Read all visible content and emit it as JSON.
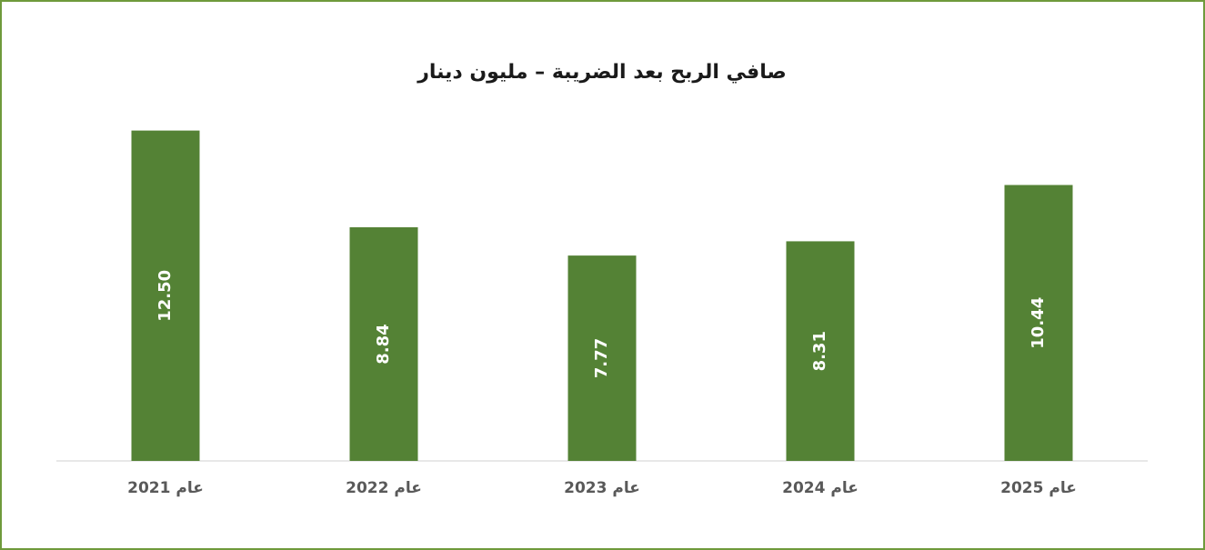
{
  "chart_data": {
    "type": "bar",
    "title": "صافي الربح بعد الضريبة – مليون دينار",
    "categories": [
      "عام 2021",
      "عام 2022",
      "عام 2023",
      "عام 2024",
      "عام 2025"
    ],
    "values": [
      12.5,
      8.84,
      7.77,
      8.31,
      10.44
    ],
    "value_labels": [
      "12.50",
      "8.84",
      "7.77",
      "8.31",
      "10.44"
    ],
    "color": "#548235",
    "ylim": [
      0,
      14
    ]
  }
}
